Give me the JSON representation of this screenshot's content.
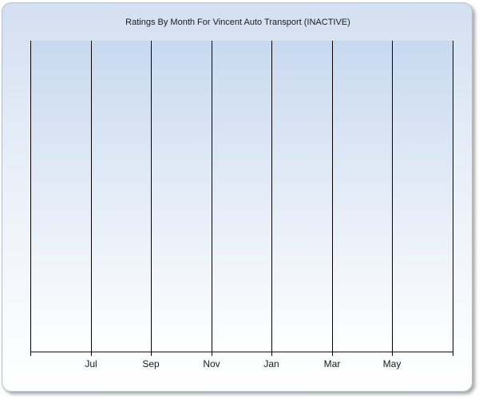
{
  "chart_data": {
    "type": "bar",
    "title": "Ratings By Month For Vincent Auto Transport (INACTIVE)",
    "xlabel": "",
    "ylabel": "",
    "x_tick_labels": [
      "Jul",
      "Sep",
      "Nov",
      "Jan",
      "Mar",
      "May"
    ],
    "categories": [],
    "series": [],
    "grid": {
      "vertical": true,
      "horizontal": false
    },
    "colors": {
      "grid": "#000000",
      "axis": "#000000",
      "plot_top": "#c8d9ef",
      "plot_bottom": "#ffffff",
      "frame_border": "#b4bfcc"
    }
  }
}
